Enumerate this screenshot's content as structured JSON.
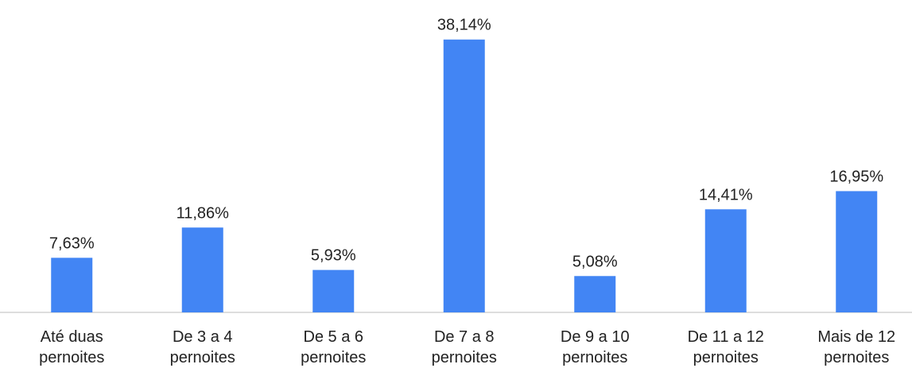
{
  "chart_data": {
    "type": "bar",
    "categories": [
      "Até duas pernoites",
      "De 3 a 4 pernoites",
      "De 5 a 6 pernoites",
      "De 7 a 8 pernoites",
      "De 9 a 10 pernoites",
      "De 11 a 12 pernoites",
      "Mais de 12 pernoites"
    ],
    "values": [
      7.63,
      11.86,
      5.93,
      38.14,
      5.08,
      14.41,
      16.95
    ],
    "value_labels": [
      "7,63%",
      "11,86%",
      "5,93%",
      "38,14%",
      "5,08%",
      "14,41%",
      "16,95%"
    ],
    "color": "#4285f4",
    "ylim": [
      0,
      40
    ]
  }
}
